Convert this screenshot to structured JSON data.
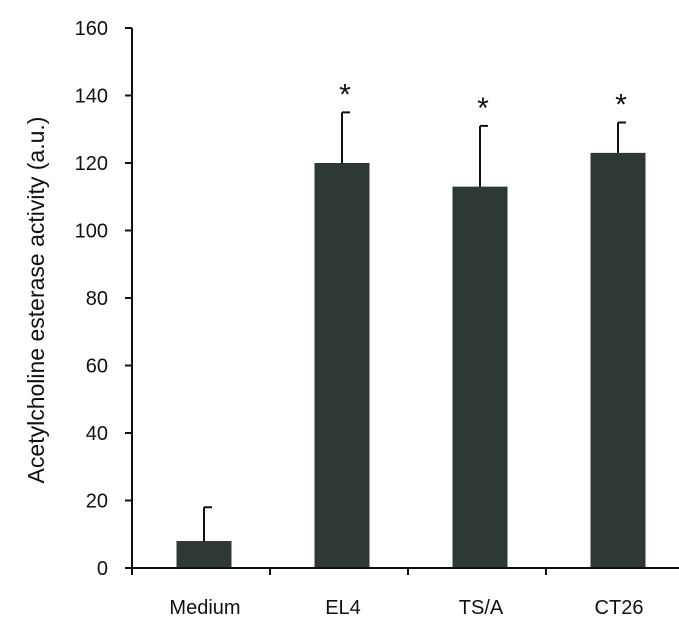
{
  "chart_data": {
    "type": "bar",
    "title": "",
    "xlabel": "",
    "ylabel": "Acetylcholine esterase activity (a.u.)",
    "ylim": [
      0,
      160
    ],
    "yticks": [
      0,
      20,
      40,
      60,
      80,
      100,
      120,
      140,
      160
    ],
    "categories": [
      "Medium",
      "EL4",
      "TS/A",
      "CT26"
    ],
    "values": [
      8,
      120,
      113,
      123
    ],
    "error_upper": [
      18,
      135,
      131,
      132
    ],
    "annotations": [
      "",
      "*",
      "*",
      "*"
    ],
    "bar_color": "#2e3835",
    "grid": false,
    "legend": "none"
  }
}
